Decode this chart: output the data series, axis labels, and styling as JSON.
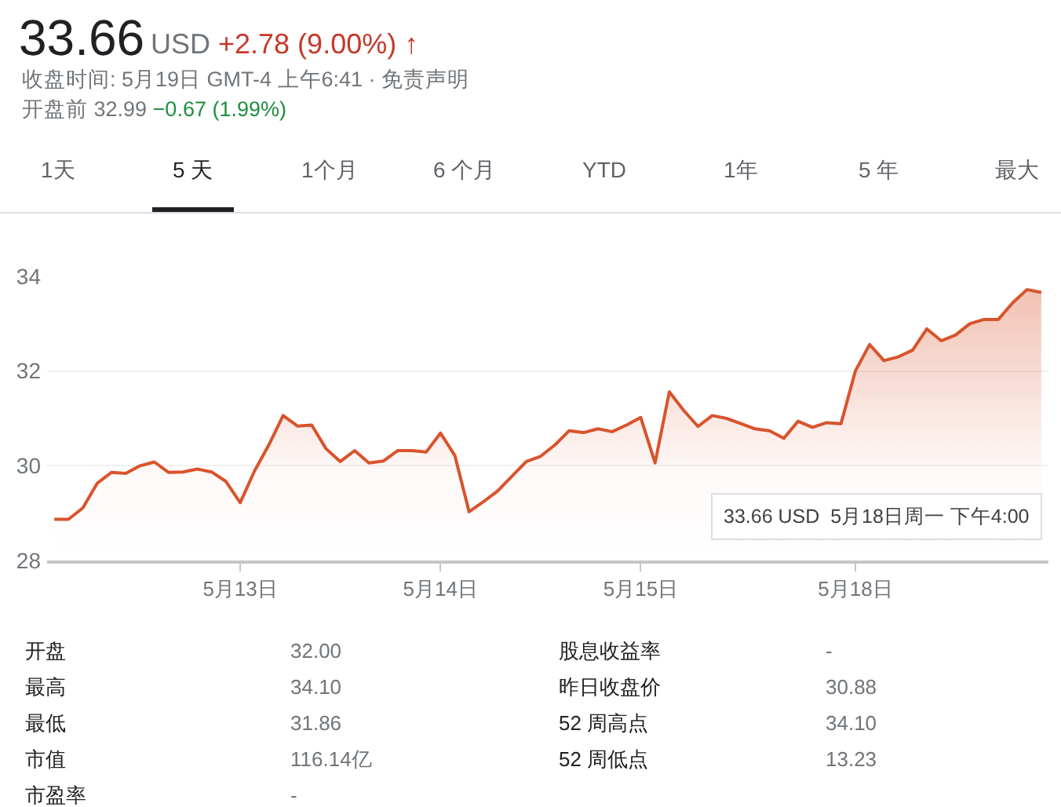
{
  "chart_data": {
    "type": "area",
    "title": "33.66",
    "subtitle": "收盘时间: 5月19日 GMT-4 上午6:41 · 免责声明",
    "annotations": [
      "USD",
      "+2.78 (9.00%) ↑",
      "开盘前 32.99",
      "−0.67 (1.99%)",
      "1天",
      "5 天",
      "1个月",
      "6 个月",
      "YTD",
      "1年",
      "5 年",
      "最大",
      "33.66 USD  5月18日周一 下午4:00",
      "开盘",
      "32.00",
      "股息收益率",
      "-",
      "最高",
      "34.10",
      "昨日收盘价",
      "30.88",
      "最低",
      "31.86",
      "52 周高点",
      "34.10",
      "市值",
      "116.14亿",
      "52 周低点",
      "13.23",
      "市盈率",
      "-"
    ],
    "categories": [
      null,
      null,
      null,
      null,
      null,
      null,
      null,
      null,
      null,
      null,
      null,
      null,
      null,
      "5月13日",
      null,
      null,
      null,
      null,
      null,
      null,
      null,
      null,
      null,
      null,
      null,
      null,
      null,
      "5月14日",
      null,
      null,
      null,
      null,
      null,
      null,
      null,
      null,
      null,
      null,
      null,
      null,
      null,
      "5月15日",
      null,
      null,
      null,
      null,
      null,
      null,
      null,
      null,
      null,
      null,
      null,
      null,
      null,
      null,
      "5月18日",
      null,
      null,
      null,
      null,
      null,
      null,
      null,
      null,
      null,
      null,
      null,
      null,
      null
    ],
    "series": [
      {
        "color": "#d9532c",
        "values": [
          28.87,
          28.87,
          29.11,
          29.63,
          29.86,
          29.84,
          30.0,
          30.08,
          29.86,
          29.87,
          29.93,
          29.87,
          29.67,
          29.22,
          29.89,
          30.44,
          31.06,
          30.84,
          30.86,
          30.36,
          30.09,
          30.32,
          30.06,
          30.1,
          30.32,
          30.32,
          30.29,
          30.69,
          30.22,
          29.03,
          29.24,
          29.47,
          29.78,
          30.09,
          30.2,
          30.44,
          30.74,
          30.7,
          30.78,
          30.72,
          30.86,
          31.02,
          30.06,
          31.56,
          31.17,
          30.83,
          31.06,
          31.0,
          30.89,
          30.78,
          30.74,
          30.58,
          30.94,
          30.81,
          30.91,
          30.89,
          32.0,
          32.56,
          32.22,
          32.3,
          32.44,
          32.89,
          32.64,
          32.76,
          33.0,
          33.09,
          33.09,
          33.44,
          33.72,
          33.66
        ]
      }
    ],
    "ylim": [
      28,
      34
    ],
    "yticks": [
      28,
      30,
      32,
      34
    ],
    "grid": "y"
  }
}
